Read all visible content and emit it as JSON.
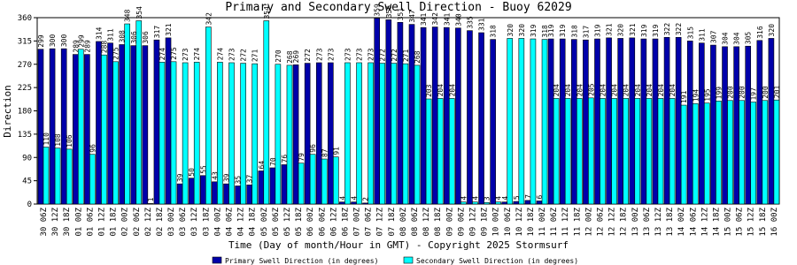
{
  "chart_data": {
    "type": "bar",
    "title": "Primary and Secondary Swell Direction - Buoy 62029",
    "x_label": "Time (Day of month/Hour in GMT) - Copyright 2025 Stormsurf",
    "y_label": "Direction",
    "categories": [
      "30 06Z",
      "30 12Z",
      "30 18Z",
      "01 00Z",
      "01 06Z",
      "01 12Z",
      "01 18Z",
      "02 00Z",
      "02 06Z",
      "02 12Z",
      "02 18Z",
      "03 00Z",
      "03 06Z",
      "03 12Z",
      "03 18Z",
      "04 00Z",
      "04 06Z",
      "04 12Z",
      "04 18Z",
      "05 00Z",
      "05 06Z",
      "05 12Z",
      "05 18Z",
      "06 00Z",
      "06 06Z",
      "06 12Z",
      "06 18Z",
      "07 00Z",
      "07 06Z",
      "07 12Z",
      "07 18Z",
      "08 00Z",
      "08 06Z",
      "08 12Z",
      "08 18Z",
      "09 00Z",
      "09 06Z",
      "09 12Z",
      "09 18Z",
      "10 00Z",
      "10 06Z",
      "10 12Z",
      "10 18Z",
      "11 00Z",
      "11 06Z",
      "11 12Z",
      "11 18Z",
      "12 00Z",
      "12 06Z",
      "12 12Z",
      "12 18Z",
      "13 00Z",
      "13 06Z",
      "13 12Z",
      "13 18Z",
      "14 00Z",
      "14 06Z",
      "14 12Z",
      "14 18Z",
      "15 00Z",
      "15 06Z",
      "15 12Z",
      "15 18Z",
      "16 00Z"
    ],
    "series": [
      {
        "name": "Primary Swell Direction (in degrees)",
        "color": "#0000aa",
        "values": [
          299,
          300,
          300,
          289,
          289,
          314,
          311,
          308,
          306,
          306,
          317,
          321,
          39,
          50,
          55,
          43,
          39,
          35,
          37,
          64,
          70,
          76,
          269,
          272,
          273,
          273,
          4,
          4,
          2,
          359,
          356,
          351,
          347,
          341,
          342,
          341,
          340,
          335,
          331,
          318,
          4,
          5,
          7,
          6,
          319,
          319,
          318,
          317,
          319,
          321,
          320,
          321,
          319,
          319,
          322,
          322,
          315,
          311,
          307,
          304,
          304,
          305,
          316,
          320
        ]
      },
      {
        "name": "Secondary Swell Direction (in degrees)",
        "color": "#00ffff",
        "values": [
          110,
          108,
          106,
          299,
          96,
          288,
          275,
          348,
          354,
          1,
          274,
          275,
          273,
          274,
          342,
          274,
          273,
          272,
          271,
          354,
          270,
          268,
          79,
          96,
          87,
          91,
          273,
          273,
          273,
          272,
          272,
          271,
          268,
          203,
          204,
          204,
          4,
          4,
          3,
          4,
          320,
          320,
          319,
          318,
          204,
          204,
          204,
          205,
          204,
          204,
          204,
          204,
          204,
          204,
          204,
          191,
          194,
          195,
          199,
          200,
          200,
          197,
          200,
          201
        ]
      }
    ],
    "ylim": [
      0,
      360
    ],
    "yticks": [
      0,
      45,
      90,
      135,
      180,
      225,
      270,
      315,
      360
    ]
  }
}
